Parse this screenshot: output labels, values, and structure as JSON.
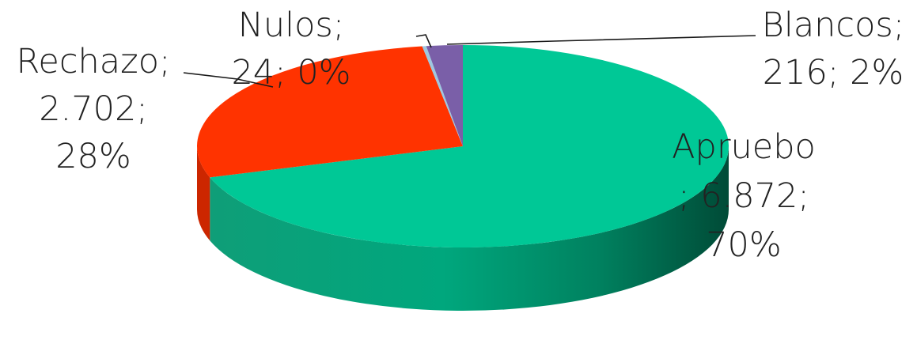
{
  "chart_data": {
    "type": "pie",
    "style": "3d",
    "slices": [
      {
        "name": "Apruebo",
        "value": 6872,
        "percent": 70,
        "color": "#00c896",
        "side_color": "#009e74",
        "label_lines": [
          "Apruebo",
          "; 6.872;",
          "70%"
        ]
      },
      {
        "name": "Rechazo",
        "value": 2702,
        "percent": 28,
        "color": "#ff3300",
        "side_color": "#cc2600",
        "label_lines": [
          "Rechazo;",
          "2.702;",
          "28%"
        ]
      },
      {
        "name": "Nulos",
        "value": 24,
        "percent": 0,
        "color": "#9ec8e0",
        "side_color": "#7aa5be",
        "label_lines": [
          "Nulos;",
          "24; 0%"
        ]
      },
      {
        "name": "Blancos",
        "value": 216,
        "percent": 2,
        "color": "#7a5fa8",
        "side_color": "#5d4785",
        "label_lines": [
          "Blancos;",
          "216; 2%"
        ]
      }
    ]
  }
}
